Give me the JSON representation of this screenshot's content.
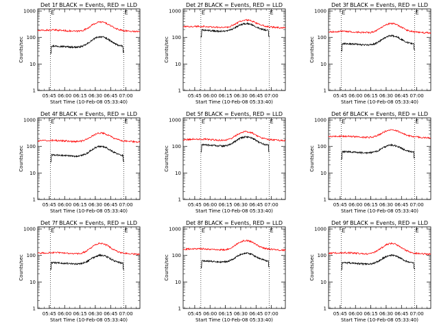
{
  "colors": {
    "events": "#000000",
    "lld": "#ff0000",
    "axes": "#000000",
    "background": "#ffffff"
  },
  "chart_data": [
    {
      "type": "line",
      "title": "Det 1f BLACK = Events, RED = LLD",
      "ylabel": "Counts/sec",
      "xlabel": "Start Time (10-Feb-08 05:33:40)",
      "x_tick_labels": [
        "05:45",
        "06:00",
        "06:15",
        "06:30",
        "06:45",
        "07:00"
      ],
      "y_tick_labels": [
        "1",
        "10",
        "100",
        "1000"
      ],
      "y_scale": "log",
      "ylim": [
        1,
        1200
      ],
      "xlim": [
        "05:33:40",
        "07:13:40"
      ],
      "markers": [
        {
          "time": "05:46",
          "label": "E"
        },
        {
          "time": "06:58",
          "label": "E"
        }
      ],
      "series": [
        {
          "name": "Events",
          "color": "#000000",
          "start": "05:46",
          "end": "06:58",
          "base": 45,
          "peak": 105
        },
        {
          "name": "LLD",
          "color": "#ff0000",
          "start": "05:33:40",
          "end": "07:13:40",
          "base": 180,
          "peak": 380
        }
      ]
    },
    {
      "type": "line",
      "title": "Det 2f BLACK = Events, RED = LLD",
      "ylabel": "Counts/sec",
      "xlabel": "Start Time (10-Feb-08 05:33:40)",
      "x_tick_labels": [
        "05:45",
        "06:00",
        "06:15",
        "06:30",
        "06:45",
        "07:00"
      ],
      "y_tick_labels": [
        "1",
        "10",
        "100",
        "1000"
      ],
      "y_scale": "log",
      "ylim": [
        1,
        1200
      ],
      "xlim": [
        "05:33:40",
        "07:13:40"
      ],
      "markers": [
        {
          "time": "05:51",
          "label": "E"
        },
        {
          "time": "06:58",
          "label": "E"
        }
      ],
      "series": [
        {
          "name": "Events",
          "color": "#000000",
          "start": "05:51",
          "end": "06:58",
          "base": 180,
          "peak": 330
        },
        {
          "name": "LLD",
          "color": "#ff0000",
          "start": "05:33:40",
          "end": "07:13:40",
          "base": 250,
          "peak": 450
        }
      ]
    },
    {
      "type": "line",
      "title": "Det 3f BLACK = Events, RED = LLD",
      "ylabel": "Counts/sec",
      "xlabel": "Start Time (10-Feb-08 05:33:40)",
      "x_tick_labels": [
        "05:45",
        "06:00",
        "06:15",
        "06:30",
        "06:45",
        "07:00"
      ],
      "y_tick_labels": [
        "1",
        "10",
        "100",
        "1000"
      ],
      "y_scale": "log",
      "ylim": [
        1,
        1200
      ],
      "xlim": [
        "05:33:40",
        "07:13:40"
      ],
      "markers": [
        {
          "time": "05:46",
          "label": "E"
        },
        {
          "time": "06:58",
          "label": "E"
        }
      ],
      "series": [
        {
          "name": "Events",
          "color": "#000000",
          "start": "05:46",
          "end": "06:58",
          "base": 55,
          "peak": 115
        },
        {
          "name": "LLD",
          "color": "#ff0000",
          "start": "05:33:40",
          "end": "07:13:40",
          "base": 160,
          "peak": 330
        }
      ]
    },
    {
      "type": "line",
      "title": "Det 4f BLACK = Events, RED = LLD",
      "ylabel": "Counts/sec",
      "xlabel": "Start Time (10-Feb-08 05:33:40)",
      "x_tick_labels": [
        "05:45",
        "06:00",
        "06:15",
        "06:30",
        "06:45",
        "07:00"
      ],
      "y_tick_labels": [
        "1",
        "10",
        "100",
        "1000"
      ],
      "y_scale": "log",
      "ylim": [
        1,
        1200
      ],
      "xlim": [
        "05:33:40",
        "07:13:40"
      ],
      "markers": [
        {
          "time": "05:46",
          "label": "E"
        },
        {
          "time": "06:58",
          "label": "E"
        }
      ],
      "series": [
        {
          "name": "Events",
          "color": "#000000",
          "start": "05:46",
          "end": "06:58",
          "base": 45,
          "peak": 100
        },
        {
          "name": "LLD",
          "color": "#ff0000",
          "start": "05:33:40",
          "end": "07:13:40",
          "base": 160,
          "peak": 320
        }
      ]
    },
    {
      "type": "line",
      "title": "Det 5f BLACK = Events, RED = LLD",
      "ylabel": "Counts/sec",
      "xlabel": "Start Time (10-Feb-08 05:33:40)",
      "x_tick_labels": [
        "05:45",
        "06:00",
        "06:15",
        "06:30",
        "06:45",
        "07:00"
      ],
      "y_tick_labels": [
        "1",
        "10",
        "100",
        "1000"
      ],
      "y_scale": "log",
      "ylim": [
        1,
        1200
      ],
      "xlim": [
        "05:33:40",
        "07:13:40"
      ],
      "markers": [
        {
          "time": "05:51",
          "label": "E"
        },
        {
          "time": "06:58",
          "label": "E"
        }
      ],
      "series": [
        {
          "name": "Events",
          "color": "#000000",
          "start": "05:51",
          "end": "06:58",
          "base": 110,
          "peak": 230
        },
        {
          "name": "LLD",
          "color": "#ff0000",
          "start": "05:33:40",
          "end": "07:13:40",
          "base": 180,
          "peak": 360
        }
      ]
    },
    {
      "type": "line",
      "title": "Det 6f BLACK = Events, RED = LLD",
      "ylabel": "Counts/sec",
      "xlabel": "Start Time (10-Feb-08 05:33:40)",
      "x_tick_labels": [
        "05:45",
        "06:00",
        "06:15",
        "06:30",
        "06:45",
        "07:00"
      ],
      "y_tick_labels": [
        "1",
        "10",
        "100",
        "1000"
      ],
      "y_scale": "log",
      "ylim": [
        1,
        1200
      ],
      "xlim": [
        "05:33:40",
        "07:13:40"
      ],
      "markers": [
        {
          "time": "05:46",
          "label": "E"
        },
        {
          "time": "06:58",
          "label": "E"
        }
      ],
      "series": [
        {
          "name": "Events",
          "color": "#000000",
          "start": "05:46",
          "end": "06:58",
          "base": 60,
          "peak": 110
        },
        {
          "name": "LLD",
          "color": "#ff0000",
          "start": "05:33:40",
          "end": "07:13:40",
          "base": 230,
          "peak": 420
        }
      ]
    },
    {
      "type": "line",
      "title": "Det 7f BLACK = Events, RED = LLD",
      "ylabel": "Counts/sec",
      "xlabel": "Start Time (10-Feb-08 05:33:40)",
      "x_tick_labels": [
        "05:45",
        "06:00",
        "06:15",
        "06:30",
        "06:45",
        "07:00"
      ],
      "y_tick_labels": [
        "1",
        "10",
        "100",
        "1000"
      ],
      "y_scale": "log",
      "ylim": [
        1,
        1200
      ],
      "xlim": [
        "05:33:40",
        "07:13:40"
      ],
      "markers": [
        {
          "time": "05:46",
          "label": "E"
        },
        {
          "time": "06:58",
          "label": "E"
        }
      ],
      "series": [
        {
          "name": "Events",
          "color": "#000000",
          "start": "05:46",
          "end": "06:58",
          "base": 50,
          "peak": 100
        },
        {
          "name": "LLD",
          "color": "#ff0000",
          "start": "05:33:40",
          "end": "07:13:40",
          "base": 120,
          "peak": 280
        }
      ]
    },
    {
      "type": "line",
      "title": "Det 8f BLACK = Events, RED = LLD",
      "ylabel": "Counts/sec",
      "xlabel": "Start Time (10-Feb-08 05:33:40)",
      "x_tick_labels": [
        "05:45",
        "06:00",
        "06:15",
        "06:30",
        "06:45",
        "07:00"
      ],
      "y_tick_labels": [
        "1",
        "10",
        "100",
        "1000"
      ],
      "y_scale": "log",
      "ylim": [
        1,
        1200
      ],
      "xlim": [
        "05:33:40",
        "07:13:40"
      ],
      "markers": [
        {
          "time": "05:51",
          "label": "E"
        },
        {
          "time": "06:58",
          "label": "E"
        }
      ],
      "series": [
        {
          "name": "Events",
          "color": "#000000",
          "start": "05:51",
          "end": "06:58",
          "base": 60,
          "peak": 120
        },
        {
          "name": "LLD",
          "color": "#ff0000",
          "start": "05:33:40",
          "end": "07:13:40",
          "base": 170,
          "peak": 360
        }
      ]
    },
    {
      "type": "line",
      "title": "Det 9f BLACK = Events, RED = LLD",
      "ylabel": "Counts/sec",
      "xlabel": "Start Time (10-Feb-08 05:33:40)",
      "x_tick_labels": [
        "05:45",
        "06:00",
        "06:15",
        "06:30",
        "06:45",
        "07:00"
      ],
      "y_tick_labels": [
        "1",
        "10",
        "100",
        "1000"
      ],
      "y_scale": "log",
      "ylim": [
        1,
        1200
      ],
      "xlim": [
        "05:33:40",
        "07:13:40"
      ],
      "markers": [
        {
          "time": "05:46",
          "label": "E"
        },
        {
          "time": "06:58",
          "label": "E"
        }
      ],
      "series": [
        {
          "name": "Events",
          "color": "#000000",
          "start": "05:46",
          "end": "06:58",
          "base": 50,
          "peak": 100
        },
        {
          "name": "LLD",
          "color": "#ff0000",
          "start": "05:33:40",
          "end": "07:13:40",
          "base": 120,
          "peak": 280
        }
      ]
    }
  ]
}
